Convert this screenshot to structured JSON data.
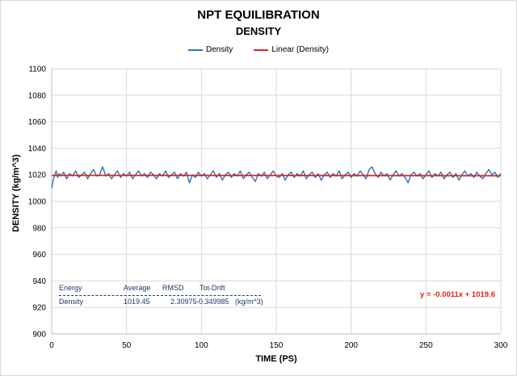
{
  "chart_data": {
    "type": "line",
    "title": "NPT EQUILIBRATION",
    "subtitle": "DENSITY",
    "xlabel": "TIME (PS)",
    "ylabel": "DENSITY (kg/m^3)",
    "xlim": [
      0,
      300
    ],
    "ylim": [
      900,
      1100
    ],
    "x_ticks": [
      0,
      50,
      100,
      150,
      200,
      250,
      300
    ],
    "y_ticks": [
      900,
      920,
      940,
      960,
      980,
      1000,
      1020,
      1040,
      1060,
      1080,
      1100
    ],
    "grid": true,
    "legend_position": "top",
    "series": [
      {
        "name": "Density",
        "color": "#2e75b6",
        "x": [
          0,
          1,
          2,
          3,
          4,
          5,
          6,
          8,
          10,
          12,
          14,
          16,
          18,
          20,
          22,
          24,
          26,
          28,
          30,
          32,
          34,
          35,
          36,
          38,
          40,
          42,
          44,
          46,
          48,
          50,
          52,
          54,
          56,
          58,
          60,
          62,
          64,
          66,
          68,
          70,
          72,
          74,
          76,
          78,
          80,
          82,
          84,
          86,
          88,
          90,
          92,
          94,
          96,
          98,
          100,
          102,
          104,
          106,
          108,
          110,
          112,
          114,
          116,
          118,
          120,
          122,
          124,
          126,
          128,
          130,
          132,
          134,
          136,
          138,
          140,
          142,
          144,
          146,
          148,
          150,
          152,
          154,
          156,
          158,
          160,
          162,
          164,
          166,
          168,
          170,
          172,
          174,
          176,
          178,
          180,
          182,
          184,
          186,
          188,
          190,
          192,
          194,
          196,
          198,
          200,
          202,
          204,
          206,
          208,
          210,
          212,
          214,
          216,
          218,
          220,
          222,
          224,
          226,
          228,
          230,
          232,
          234,
          236,
          238,
          240,
          242,
          244,
          246,
          248,
          250,
          252,
          254,
          256,
          258,
          260,
          262,
          264,
          266,
          268,
          270,
          272,
          274,
          276,
          278,
          280,
          282,
          284,
          286,
          288,
          290,
          292,
          294,
          296,
          298,
          300
        ],
        "y": [
          1010,
          1016,
          1020,
          1023,
          1018,
          1021,
          1019,
          1022,
          1017,
          1021,
          1019,
          1023,
          1018,
          1020,
          1022,
          1017,
          1021,
          1024,
          1019,
          1020,
          1026,
          1023,
          1019,
          1021,
          1017,
          1020,
          1023,
          1018,
          1021,
          1019,
          1022,
          1017,
          1020,
          1023,
          1019,
          1021,
          1018,
          1022,
          1020,
          1017,
          1021,
          1019,
          1023,
          1018,
          1020,
          1022,
          1017,
          1021,
          1019,
          1022,
          1014,
          1020,
          1018,
          1022,
          1019,
          1021,
          1017,
          1020,
          1023,
          1018,
          1021,
          1016,
          1020,
          1022,
          1018,
          1021,
          1019,
          1023,
          1017,
          1020,
          1022,
          1018,
          1015,
          1021,
          1019,
          1022,
          1017,
          1020,
          1023,
          1019,
          1018,
          1021,
          1016,
          1020,
          1022,
          1018,
          1021,
          1019,
          1023,
          1017,
          1020,
          1022,
          1018,
          1021,
          1016,
          1020,
          1022,
          1018,
          1021,
          1019,
          1023,
          1017,
          1020,
          1022,
          1018,
          1021,
          1019,
          1023,
          1020,
          1017,
          1024,
          1026,
          1021,
          1018,
          1022,
          1019,
          1021,
          1016,
          1020,
          1023,
          1019,
          1021,
          1018,
          1014,
          1020,
          1022,
          1019,
          1021,
          1017,
          1020,
          1023,
          1018,
          1021,
          1019,
          1022,
          1017,
          1020,
          1022,
          1018,
          1021,
          1016,
          1020,
          1023,
          1019,
          1021,
          1018,
          1022,
          1019,
          1017,
          1021,
          1024,
          1020,
          1022,
          1018,
          1021
        ]
      },
      {
        "name": "Linear (Density)",
        "color": "#e0201b",
        "x": [
          0,
          300
        ],
        "y": [
          1019.6,
          1019.27
        ]
      }
    ],
    "annotations": {
      "trendline_equation": "y = -0.0011x + 1019.6"
    }
  },
  "stats_table": {
    "headers": [
      "Energy",
      "Average",
      "RMSD",
      "Tot-Drift"
    ],
    "rows": [
      {
        "energy": "Density",
        "average": "1019.45",
        "rmsd": "2.30975",
        "drift": "-0.349985",
        "unit": "(kg/m^3)"
      }
    ]
  }
}
